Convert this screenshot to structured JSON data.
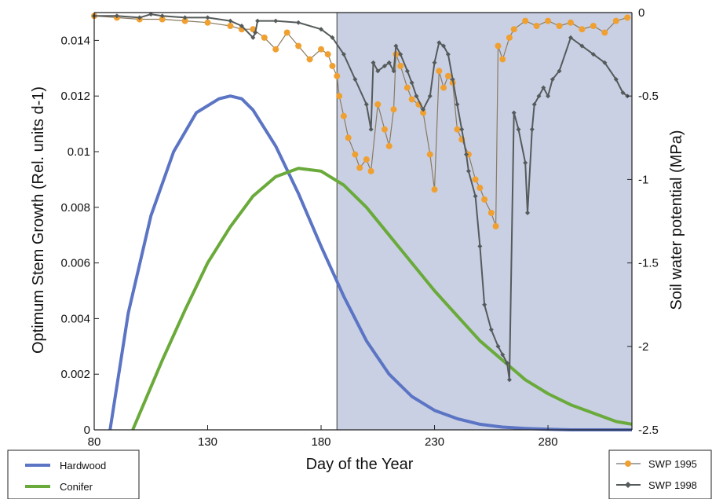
{
  "chart_data": {
    "type": "line",
    "xlabel": "Day of  the Year",
    "ylabel_left": "Optimum Stem Growth (Rel. units d-1)",
    "ylabel_right": "Soil water potential (MPa)",
    "xlim": [
      80,
      317
    ],
    "ylim_left": [
      0,
      0.015
    ],
    "ylim_right": [
      -2.5,
      0
    ],
    "x_ticks": [
      "80",
      "130",
      "180",
      "230",
      "280"
    ],
    "y_left_ticks": [
      "0",
      "0.002",
      "0.004",
      "0.006",
      "0.008",
      "0.01",
      "0.012",
      "0.014"
    ],
    "y_right_ticks": [
      "0",
      "-0.5",
      "-1",
      "-1.5",
      "-2",
      "-2.5"
    ],
    "shaded_region": {
      "x_start": 187,
      "x_end": 317,
      "color": "#c9d0e4"
    },
    "grid": false,
    "series": [
      {
        "name": "Hardwood",
        "axis": "left",
        "color": "#5b74c4",
        "x": [
          87,
          95,
          105,
          115,
          125,
          135,
          140,
          145,
          150,
          160,
          170,
          180,
          190,
          200,
          210,
          220,
          230,
          240,
          250,
          260,
          270,
          280,
          290,
          300,
          310,
          317
        ],
        "y": [
          0,
          0.0042,
          0.0077,
          0.01,
          0.0114,
          0.0119,
          0.012,
          0.0119,
          0.0115,
          0.0102,
          0.0085,
          0.0066,
          0.0048,
          0.0032,
          0.002,
          0.0012,
          0.0007,
          0.0004,
          0.0002,
          0.0001,
          5e-05,
          2e-05,
          0,
          0,
          0,
          0
        ]
      },
      {
        "name": "Conifer",
        "axis": "left",
        "color": "#6aaa3a",
        "x": [
          97,
          110,
          120,
          130,
          140,
          150,
          160,
          170,
          180,
          190,
          200,
          210,
          220,
          230,
          240,
          250,
          260,
          270,
          280,
          290,
          300,
          310,
          317
        ],
        "y": [
          0,
          0.0025,
          0.0043,
          0.006,
          0.0073,
          0.0084,
          0.0091,
          0.0094,
          0.0093,
          0.0088,
          0.008,
          0.007,
          0.006,
          0.005,
          0.0041,
          0.0032,
          0.0025,
          0.0018,
          0.0013,
          0.0009,
          0.0006,
          0.0003,
          0.0002
        ]
      },
      {
        "name": "SWP 1995",
        "axis": "right",
        "color": "#f0a030",
        "x": [
          80,
          90,
          100,
          110,
          120,
          130,
          140,
          145,
          150,
          155,
          160,
          165,
          170,
          175,
          180,
          183,
          185,
          187,
          188,
          190,
          192,
          195,
          197,
          200,
          202,
          205,
          208,
          210,
          212,
          213,
          215,
          218,
          220,
          223,
          225,
          228,
          230,
          232,
          234,
          236,
          238,
          240,
          242,
          245,
          248,
          250,
          252,
          255,
          257,
          258,
          260,
          263,
          265,
          270,
          275,
          280,
          285,
          290,
          295,
          300,
          305,
          310,
          315
        ],
        "y": [
          -0.02,
          -0.03,
          -0.04,
          -0.04,
          -0.05,
          -0.06,
          -0.08,
          -0.1,
          -0.1,
          -0.15,
          -0.22,
          -0.12,
          -0.2,
          -0.28,
          -0.22,
          -0.25,
          -0.32,
          -0.38,
          -0.5,
          -0.62,
          -0.75,
          -0.85,
          -0.93,
          -0.88,
          -0.95,
          -0.55,
          -0.7,
          -0.8,
          -0.58,
          -0.25,
          -0.32,
          -0.45,
          -0.52,
          -0.55,
          -0.6,
          -0.85,
          -1.06,
          -0.35,
          -0.45,
          -0.38,
          -0.42,
          -0.7,
          -0.76,
          -0.85,
          -1.0,
          -1.05,
          -1.12,
          -1.2,
          -1.28,
          -0.2,
          -0.28,
          -0.15,
          -0.1,
          -0.05,
          -0.08,
          -0.05,
          -0.08,
          -0.06,
          -0.1,
          -0.08,
          -0.12,
          -0.05,
          -0.03
        ]
      },
      {
        "name": "SWP 1998",
        "axis": "right",
        "color": "#555a5a",
        "x": [
          80,
          90,
          100,
          105,
          110,
          120,
          130,
          140,
          145,
          150,
          151,
          152,
          160,
          170,
          180,
          185,
          190,
          195,
          200,
          202,
          203,
          205,
          208,
          210,
          212,
          213,
          215,
          218,
          220,
          222,
          225,
          228,
          230,
          232,
          234,
          236,
          238,
          240,
          242,
          244,
          245,
          248,
          250,
          252,
          255,
          258,
          260,
          262,
          263,
          265,
          267,
          270,
          271,
          273,
          274,
          276,
          278,
          280,
          282,
          285,
          290,
          295,
          300,
          305,
          310,
          313,
          315
        ],
        "y": [
          -0.02,
          -0.02,
          -0.03,
          -0.01,
          -0.02,
          -0.03,
          -0.03,
          -0.05,
          -0.08,
          -0.15,
          -0.12,
          -0.05,
          -0.05,
          -0.06,
          -0.1,
          -0.15,
          -0.25,
          -0.4,
          -0.55,
          -0.7,
          -0.3,
          -0.35,
          -0.32,
          -0.3,
          -0.35,
          -0.2,
          -0.25,
          -0.35,
          -0.42,
          -0.5,
          -0.58,
          -0.5,
          -0.3,
          -0.18,
          -0.2,
          -0.25,
          -0.4,
          -0.55,
          -0.7,
          -0.85,
          -0.95,
          -1.1,
          -1.4,
          -1.75,
          -1.9,
          -2.0,
          -2.05,
          -2.1,
          -2.2,
          -0.6,
          -0.7,
          -0.9,
          -1.2,
          -0.7,
          -0.55,
          -0.5,
          -0.45,
          -0.5,
          -0.4,
          -0.35,
          -0.15,
          -0.2,
          -0.25,
          -0.3,
          -0.4,
          -0.48,
          -0.5
        ]
      }
    ],
    "legend": {
      "left_placement": "bottom-left",
      "right_placement": "bottom-right",
      "left_items": [
        "Hardwood",
        "Conifer"
      ],
      "right_items": [
        "SWP 1995",
        "SWP 1998"
      ]
    }
  }
}
